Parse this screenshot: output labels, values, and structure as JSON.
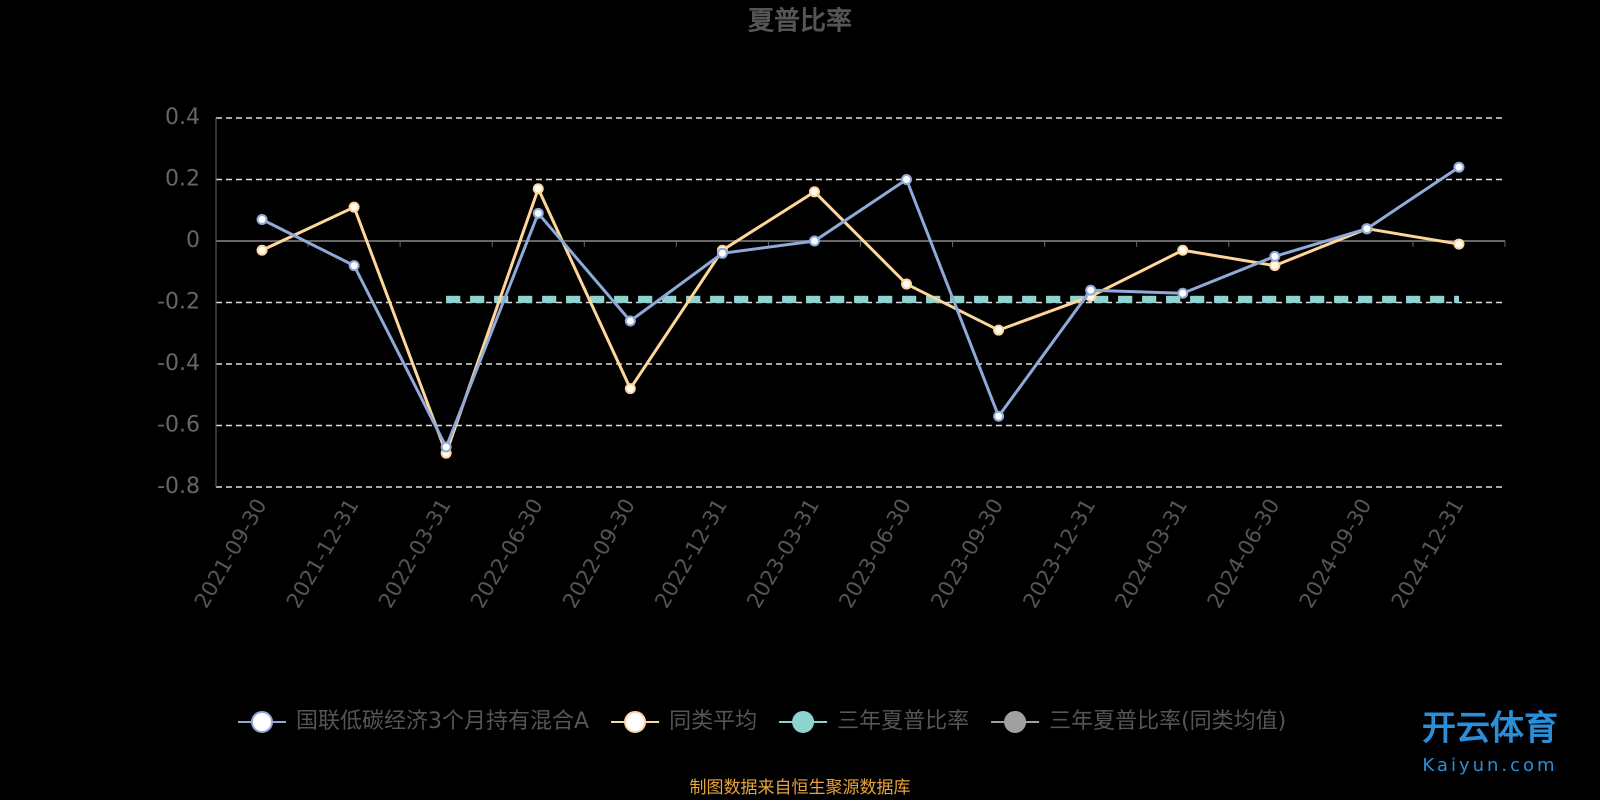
{
  "chart_data": {
    "type": "line",
    "title": "夏普比率",
    "categories": [
      "2021-09-30",
      "2021-12-31",
      "2022-03-31",
      "2022-06-30",
      "2022-09-30",
      "2022-12-31",
      "2023-03-31",
      "2023-06-30",
      "2023-09-30",
      "2023-12-31",
      "2024-03-31",
      "2024-06-30",
      "2024-09-30",
      "2024-12-31"
    ],
    "series": [
      {
        "name": "国联低碳经济3个月持有混合A",
        "color": "#8fa9d8",
        "values": [
          0.07,
          -0.08,
          -0.67,
          0.09,
          -0.26,
          -0.04,
          0.0,
          0.2,
          -0.57,
          -0.16,
          -0.17,
          -0.05,
          0.04,
          0.24
        ]
      },
      {
        "name": "同类平均",
        "color": "#ffd699",
        "values": [
          -0.03,
          0.11,
          -0.69,
          0.17,
          -0.48,
          -0.03,
          0.16,
          -0.14,
          -0.29,
          -0.18,
          -0.03,
          -0.08,
          0.04,
          -0.01
        ]
      },
      {
        "name": "三年夏普比率",
        "color": "#8dd3cf",
        "dashed": true,
        "values": [
          null,
          null,
          -0.19,
          -0.19,
          -0.19,
          -0.19,
          -0.19,
          -0.19,
          -0.19,
          -0.19,
          -0.19,
          -0.19,
          -0.19,
          -0.19
        ]
      },
      {
        "name": "三年夏普比率(同类均值)",
        "color": "#a0a0a0",
        "dashed": true,
        "values": [
          null,
          null,
          -0.19,
          -0.19,
          -0.19,
          -0.19,
          -0.19,
          -0.19,
          -0.19,
          -0.19,
          -0.19,
          -0.19,
          -0.19,
          -0.19
        ]
      }
    ],
    "ylim": [
      -0.8,
      0.4
    ],
    "yticks": [
      -0.8,
      -0.6,
      -0.4,
      -0.2,
      0,
      0.2,
      0.4
    ],
    "grid": true,
    "source": "制图数据来自恒生聚源数据库"
  },
  "watermark": {
    "name": "开云体育",
    "url": "Kaiyun.com"
  }
}
